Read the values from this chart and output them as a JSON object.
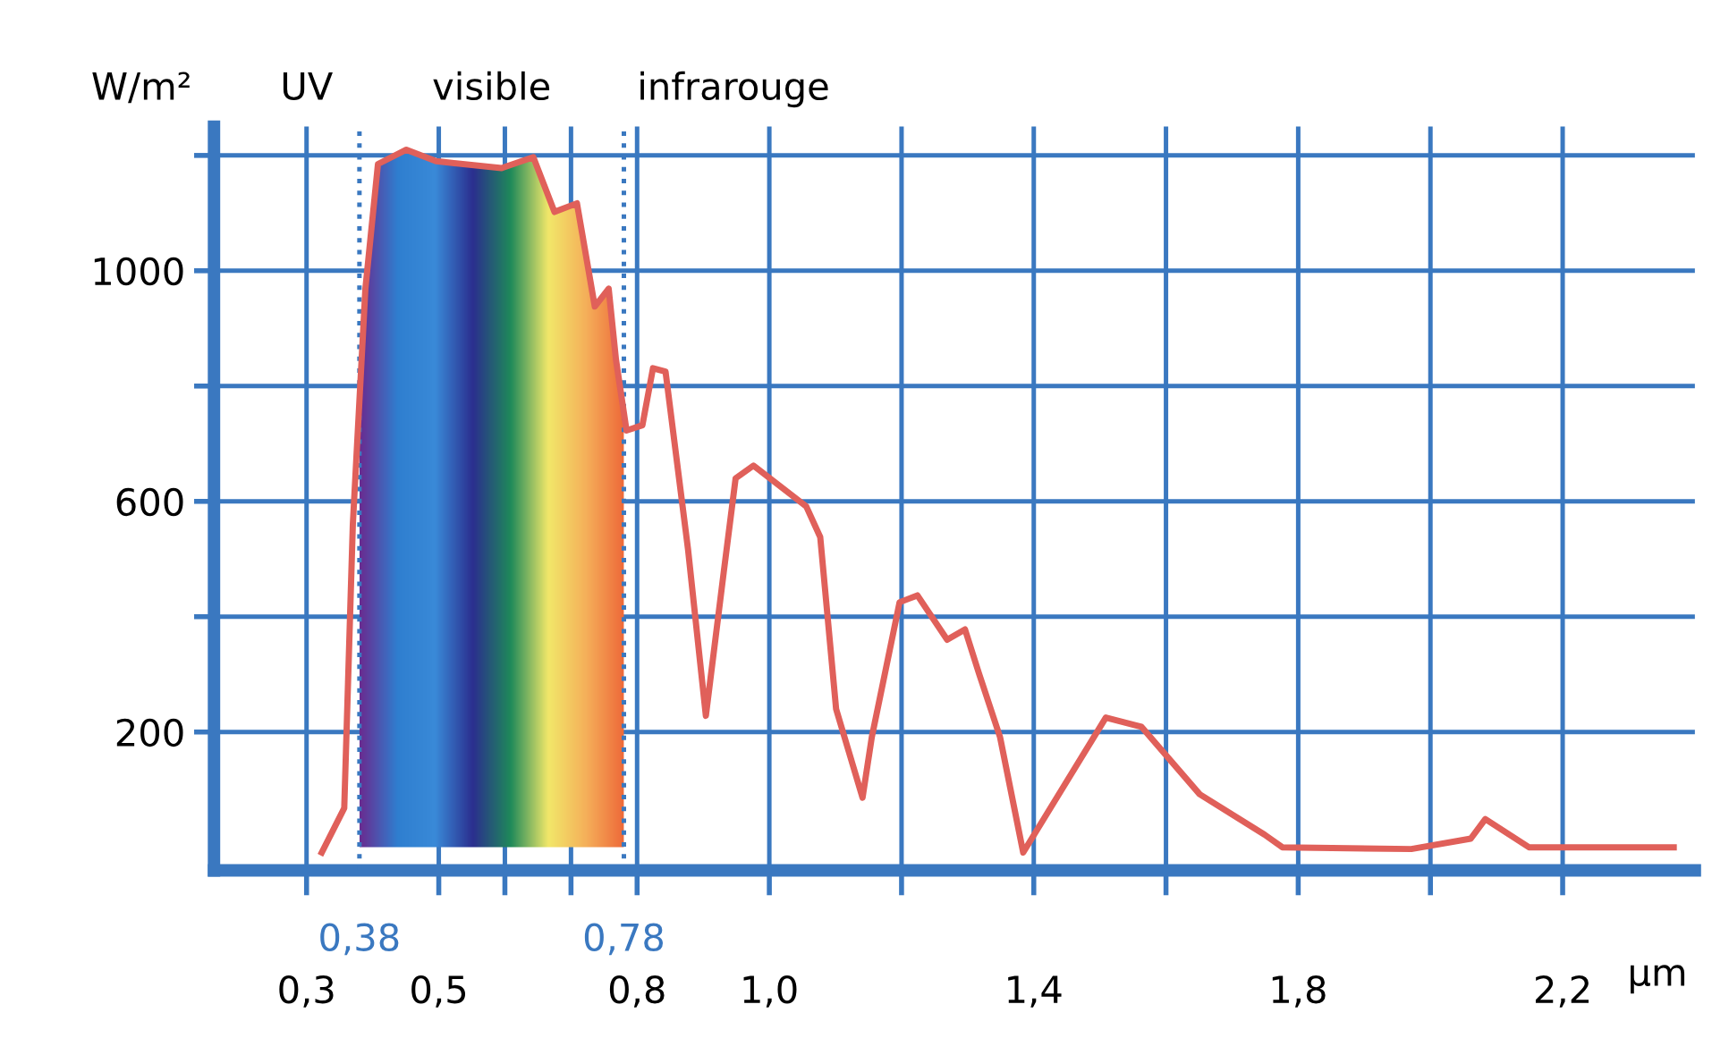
{
  "chart_data": {
    "type": "line",
    "ylabel": "W/m²",
    "xlabel": "µm",
    "annotations": [
      "UV",
      "infrarouge"
    ],
    "bands": [
      {
        "axis": "x",
        "from": 0.38,
        "to": 0.78,
        "label": "visible"
      }
    ],
    "series": [
      {
        "color": "#e0605a",
        "x": [
          0.323,
          0.357,
          0.37,
          0.389,
          0.408,
          0.451,
          0.496,
          0.595,
          0.643,
          0.675,
          0.709,
          0.736,
          0.757,
          0.768,
          0.784,
          0.808,
          0.824,
          0.843,
          0.877,
          0.904,
          0.931,
          0.949,
          0.976,
          1.056,
          1.077,
          1.101,
          1.141,
          1.155,
          1.197,
          1.224,
          1.269,
          1.296,
          1.317,
          1.349,
          1.384,
          1.509,
          1.563,
          1.651,
          1.749,
          1.776,
          1.971,
          2.061,
          2.083,
          2.149,
          2.368
        ],
        "values": [
          -9,
          68,
          560,
          969,
          1185,
          1210,
          1190,
          1178,
          1197,
          1102,
          1117,
          938,
          969,
          846,
          723,
          732,
          831,
          825,
          517,
          228,
          477,
          640,
          662,
          591,
          538,
          240,
          86,
          191,
          425,
          437,
          360,
          378,
          302,
          191,
          -9,
          225,
          209,
          92,
          22,
          0,
          -3,
          15,
          49,
          0,
          0
        ]
      }
    ],
    "xlim": [
      0.16,
      2.4
    ],
    "ylim": [
      -40,
      1250
    ],
    "xticks": [
      {
        "value": 0.3,
        "label": "0,3"
      },
      {
        "value": 0.5,
        "label": "0,5"
      },
      {
        "value": 0.6,
        "label": null
      },
      {
        "value": 0.7,
        "label": null
      },
      {
        "value": 0.8,
        "label": "0,8"
      },
      {
        "value": 1.0,
        "label": "1,0"
      },
      {
        "value": 1.2,
        "label": null
      },
      {
        "value": 1.4,
        "label": "1,4"
      },
      {
        "value": 1.6,
        "label": null
      },
      {
        "value": 1.8,
        "label": "1,8"
      },
      {
        "value": 2.0,
        "label": null
      },
      {
        "value": 2.2,
        "label": "2,2"
      }
    ],
    "yticks": [
      200,
      {
        "value": 400,
        "label": null
      },
      600,
      {
        "value": 800,
        "label": null
      },
      1000,
      {
        "value": 1200,
        "label": null
      }
    ],
    "ref_lines": [
      {
        "axis": "x",
        "value": 0.38,
        "label": "0,38",
        "color": "#3a78c0",
        "line_style": "dotted"
      },
      {
        "axis": "x",
        "value": 0.78,
        "label": "0,78",
        "color": "#3a78c0",
        "line_style": "dotted"
      }
    ],
    "grid": true,
    "marker": "none",
    "line_style": "solid"
  }
}
